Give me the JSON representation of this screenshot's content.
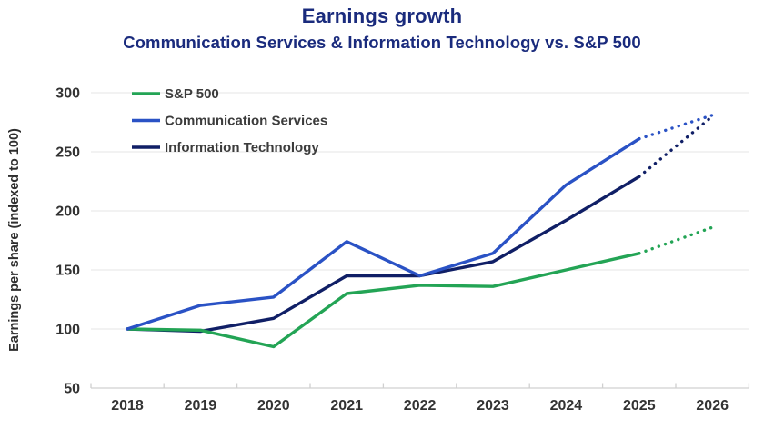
{
  "header": {
    "title": "Earnings growth",
    "subtitle": "Communication Services & Information Technology vs. S&P 500"
  },
  "chart_data": {
    "type": "line",
    "title": "Earnings growth",
    "subtitle": "Communication Services & Information Technology vs. S&P 500",
    "xlabel": "",
    "ylabel": "Earnings per share (indexed to 100)",
    "x": [
      "2018",
      "2019",
      "2020",
      "2021",
      "2022",
      "2023",
      "2024",
      "2025",
      "2026"
    ],
    "series": [
      {
        "name": "S&P 500",
        "color": "#23A455",
        "values": [
          100,
          99,
          85,
          130,
          137,
          136,
          150,
          164,
          186
        ],
        "forecast_from_index": 7
      },
      {
        "name": "Communication Services",
        "color": "#2A52C5",
        "values": [
          100,
          120,
          127,
          174,
          145,
          164,
          222,
          261,
          281
        ],
        "forecast_from_index": 7
      },
      {
        "name": "Information Technology",
        "color": "#101F66",
        "values": [
          100,
          98,
          109,
          145,
          145,
          157,
          192,
          229,
          280
        ],
        "forecast_from_index": 7
      }
    ],
    "ylim": [
      50,
      300
    ],
    "ytick_step": 50,
    "yticks": [
      50,
      100,
      150,
      200,
      250,
      300
    ],
    "grid": "horizontal",
    "legend_position": "top-left",
    "forecast_style": "dotted",
    "forecast_start_x": "2025"
  },
  "colors": {
    "title_navy": "#1A2B7D",
    "gridline": "#e9e9e9",
    "axis_line": "#d8d8d8",
    "tick_mark": "#d0d0d0",
    "axis_text": "#333333",
    "legend_text": "#3c3c3c"
  }
}
